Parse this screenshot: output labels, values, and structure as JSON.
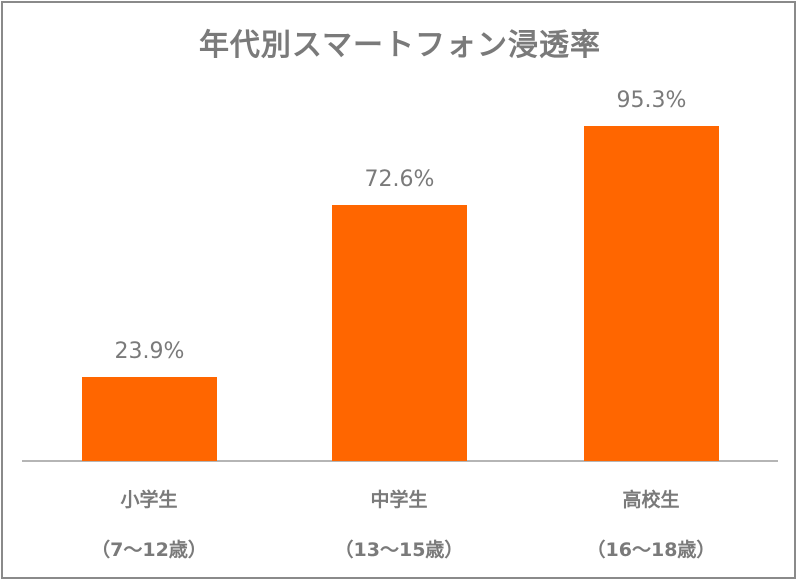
{
  "chart_data": {
    "type": "bar",
    "title": "年代別スマートフォン浸透率",
    "categories": [
      "小学生",
      "中学生",
      "高校生"
    ],
    "category_sublabels": [
      "（7～12歳）",
      "（13～15歳）",
      "（16～18歳）"
    ],
    "values": [
      23.9,
      72.6,
      95.3
    ],
    "value_labels": [
      "23.9%",
      "72.6%",
      "95.3%"
    ],
    "unit": "%",
    "bar_color": "#ff6600",
    "xlabel": "",
    "ylabel": "",
    "ylim": [
      0,
      100
    ],
    "grid": false,
    "legend": null
  }
}
